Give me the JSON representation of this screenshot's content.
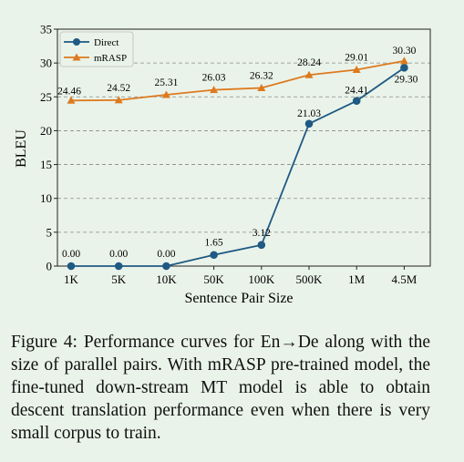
{
  "chart_data": {
    "type": "line",
    "categories": [
      "1K",
      "5K",
      "10K",
      "50K",
      "100K",
      "500K",
      "1M",
      "4.5M"
    ],
    "xlabel": "Sentence Pair Size",
    "ylabel": "BLEU",
    "ylim": [
      0,
      35
    ],
    "yticks": [
      "0",
      "5",
      "10",
      "15",
      "20",
      "25",
      "30",
      "35"
    ],
    "grid": "horizontal dashed",
    "legend": "top-left",
    "series": [
      {
        "name": "Direct",
        "color": "#1f5a82",
        "marker": "circle",
        "values": [
          0.0,
          0.0,
          0.0,
          1.65,
          3.12,
          21.03,
          24.41,
          29.3
        ],
        "labels": [
          "0.00",
          "0.00",
          "0.00",
          "1.65",
          "3.12",
          "21.03",
          "24.41",
          "29.30"
        ]
      },
      {
        "name": "mRASP",
        "color": "#dd7a1e",
        "marker": "triangle",
        "values": [
          24.46,
          24.52,
          25.31,
          26.03,
          26.32,
          28.24,
          29.01,
          30.3
        ],
        "labels": [
          "24.46",
          "24.52",
          "25.31",
          "26.03",
          "26.32",
          "28.24",
          "29.01",
          "30.30"
        ]
      }
    ]
  },
  "caption": "Figure 4: Performance curves for En→De along with the size of parallel pairs. With mRASP pre-trained model, the fine-tuned down-stream MT model is able to obtain descent translation performance even when there is very small corpus to train."
}
